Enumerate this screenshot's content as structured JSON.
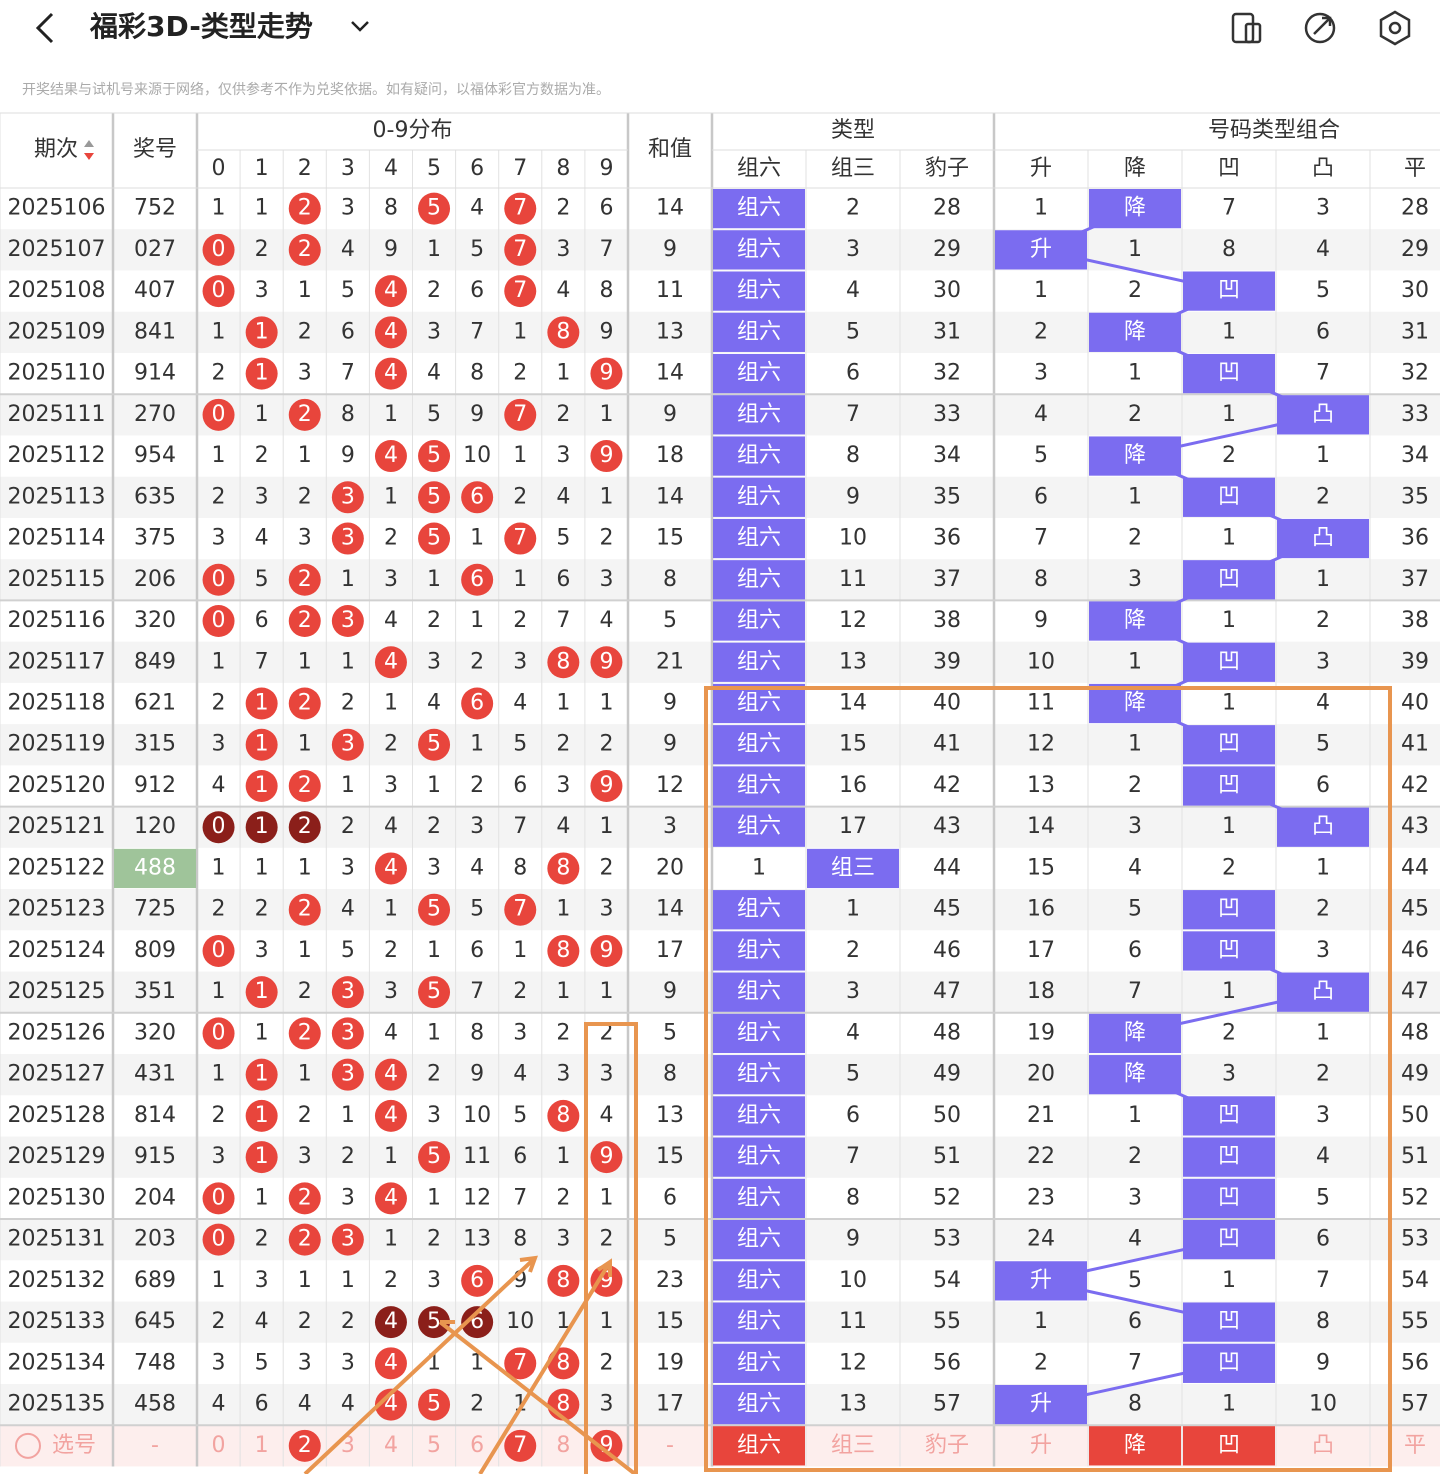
{
  "header": {
    "title": "福彩3D-类型走势",
    "notice": "开奖结果与试机号来源于网络，仅供参考不作为兑奖依据。如有疑问，以福体彩官方数据为准。"
  },
  "table": {
    "headers": {
      "issue": "期次",
      "number": "奖号",
      "distribution": "0-9分布",
      "digits": [
        "0",
        "1",
        "2",
        "3",
        "4",
        "5",
        "6",
        "7",
        "8",
        "9"
      ],
      "sum": "和值",
      "type": "类型",
      "types": [
        "组六",
        "组三",
        "豹子"
      ],
      "combo": "号码类型组合",
      "shapes": [
        "升",
        "降",
        "凹",
        "凸",
        "平"
      ]
    },
    "highlight_color": "#7b6cf0",
    "ball_color": "#e8453c",
    "rows": [
      {
        "issue": "2025106",
        "number": "752",
        "digits": [
          1,
          1,
          2,
          3,
          8,
          5,
          4,
          7,
          2,
          6
        ],
        "sum": 14,
        "types": [
          "组六",
          2,
          28
        ],
        "shapes": [
          1,
          "降",
          7,
          3,
          28
        ]
      },
      {
        "issue": "2025107",
        "number": "027",
        "digits": [
          0,
          2,
          2,
          4,
          9,
          1,
          5,
          7,
          3,
          7
        ],
        "sum": 9,
        "types": [
          "组六",
          3,
          29
        ],
        "shapes": [
          "升",
          1,
          8,
          4,
          29
        ]
      },
      {
        "issue": "2025108",
        "number": "407",
        "digits": [
          0,
          3,
          1,
          5,
          4,
          2,
          6,
          7,
          4,
          8
        ],
        "sum": 11,
        "types": [
          "组六",
          4,
          30
        ],
        "shapes": [
          1,
          2,
          "凹",
          5,
          30
        ]
      },
      {
        "issue": "2025109",
        "number": "841",
        "digits": [
          1,
          1,
          2,
          6,
          4,
          3,
          7,
          1,
          8,
          9
        ],
        "sum": 13,
        "types": [
          "组六",
          5,
          31
        ],
        "shapes": [
          2,
          "降",
          1,
          6,
          31
        ]
      },
      {
        "issue": "2025110",
        "number": "914",
        "digits": [
          2,
          1,
          3,
          7,
          4,
          4,
          8,
          2,
          1,
          9
        ],
        "sum": 14,
        "types": [
          "组六",
          6,
          32
        ],
        "shapes": [
          3,
          1,
          "凹",
          7,
          32
        ]
      },
      {
        "issue": "2025111",
        "number": "270",
        "digits": [
          0,
          1,
          2,
          8,
          1,
          5,
          9,
          7,
          2,
          1
        ],
        "sum": 9,
        "types": [
          "组六",
          7,
          33
        ],
        "shapes": [
          4,
          2,
          1,
          "凸",
          33
        ]
      },
      {
        "issue": "2025112",
        "number": "954",
        "digits": [
          1,
          2,
          1,
          9,
          4,
          5,
          10,
          1,
          3,
          9
        ],
        "sum": 18,
        "types": [
          "组六",
          8,
          34
        ],
        "shapes": [
          5,
          "降",
          2,
          1,
          34
        ]
      },
      {
        "issue": "2025113",
        "number": "635",
        "digits": [
          2,
          3,
          2,
          3,
          1,
          5,
          6,
          2,
          4,
          1
        ],
        "sum": 14,
        "types": [
          "组六",
          9,
          35
        ],
        "shapes": [
          6,
          1,
          "凹",
          2,
          35
        ]
      },
      {
        "issue": "2025114",
        "number": "375",
        "digits": [
          3,
          4,
          3,
          3,
          2,
          5,
          1,
          7,
          5,
          2
        ],
        "sum": 15,
        "types": [
          "组六",
          10,
          36
        ],
        "shapes": [
          7,
          2,
          1,
          "凸",
          36
        ]
      },
      {
        "issue": "2025115",
        "number": "206",
        "digits": [
          0,
          5,
          2,
          1,
          3,
          1,
          6,
          1,
          6,
          3
        ],
        "sum": 8,
        "types": [
          "组六",
          11,
          37
        ],
        "shapes": [
          8,
          3,
          "凹",
          1,
          37
        ]
      },
      {
        "issue": "2025116",
        "number": "320",
        "digits": [
          0,
          6,
          2,
          3,
          4,
          2,
          1,
          2,
          7,
          4
        ],
        "sum": 5,
        "types": [
          "组六",
          12,
          38
        ],
        "shapes": [
          9,
          "降",
          1,
          2,
          38
        ]
      },
      {
        "issue": "2025117",
        "number": "849",
        "digits": [
          1,
          7,
          1,
          1,
          4,
          3,
          2,
          3,
          8,
          9
        ],
        "sum": 21,
        "types": [
          "组六",
          13,
          39
        ],
        "shapes": [
          10,
          1,
          "凹",
          3,
          39
        ]
      },
      {
        "issue": "2025118",
        "number": "621",
        "digits": [
          2,
          1,
          2,
          2,
          1,
          4,
          6,
          4,
          1,
          1
        ],
        "sum": 9,
        "types": [
          "组六",
          14,
          40
        ],
        "shapes": [
          11,
          "降",
          1,
          4,
          40
        ]
      },
      {
        "issue": "2025119",
        "number": "315",
        "digits": [
          3,
          1,
          1,
          3,
          2,
          5,
          1,
          5,
          2,
          2
        ],
        "sum": 9,
        "types": [
          "组六",
          15,
          41
        ],
        "shapes": [
          12,
          1,
          "凹",
          5,
          41
        ]
      },
      {
        "issue": "2025120",
        "number": "912",
        "digits": [
          4,
          1,
          2,
          1,
          3,
          1,
          2,
          6,
          3,
          9
        ],
        "sum": 12,
        "types": [
          "组六",
          16,
          42
        ],
        "shapes": [
          13,
          2,
          "凹",
          6,
          42
        ]
      },
      {
        "issue": "2025121",
        "number": "120",
        "digits": [
          0,
          1,
          2,
          2,
          4,
          2,
          3,
          7,
          4,
          1
        ],
        "sum": 3,
        "types": [
          "组六",
          17,
          43
        ],
        "shapes": [
          14,
          3,
          1,
          "凸",
          43
        ],
        "ball_color": "#8b1f1a"
      },
      {
        "issue": "2025122",
        "number": "488",
        "digits": [
          1,
          1,
          1,
          3,
          4,
          3,
          4,
          8,
          8,
          2
        ],
        "sum": 20,
        "types": [
          1,
          "组三",
          44
        ],
        "shapes": [
          15,
          4,
          2,
          1,
          44
        ],
        "number_bg": "#9fc49a"
      },
      {
        "issue": "2025123",
        "number": "725",
        "digits": [
          2,
          2,
          2,
          4,
          1,
          5,
          5,
          7,
          1,
          3
        ],
        "sum": 14,
        "types": [
          "组六",
          1,
          45
        ],
        "shapes": [
          16,
          5,
          "凹",
          2,
          45
        ]
      },
      {
        "issue": "2025124",
        "number": "809",
        "digits": [
          0,
          3,
          1,
          5,
          2,
          1,
          6,
          1,
          8,
          9
        ],
        "sum": 17,
        "types": [
          "组六",
          2,
          46
        ],
        "shapes": [
          17,
          6,
          "凹",
          3,
          46
        ]
      },
      {
        "issue": "2025125",
        "number": "351",
        "digits": [
          1,
          1,
          2,
          3,
          3,
          5,
          7,
          2,
          1,
          1
        ],
        "sum": 9,
        "types": [
          "组六",
          3,
          47
        ],
        "shapes": [
          18,
          7,
          1,
          "凸",
          47
        ]
      },
      {
        "issue": "2025126",
        "number": "320",
        "digits": [
          0,
          1,
          2,
          3,
          4,
          1,
          8,
          3,
          2,
          2
        ],
        "sum": 5,
        "types": [
          "组六",
          4,
          48
        ],
        "shapes": [
          19,
          "降",
          2,
          1,
          48
        ]
      },
      {
        "issue": "2025127",
        "number": "431",
        "digits": [
          1,
          1,
          1,
          3,
          4,
          2,
          9,
          4,
          3,
          3
        ],
        "sum": 8,
        "types": [
          "组六",
          5,
          49
        ],
        "shapes": [
          20,
          "降",
          3,
          2,
          49
        ]
      },
      {
        "issue": "2025128",
        "number": "814",
        "digits": [
          2,
          1,
          2,
          1,
          4,
          3,
          10,
          5,
          8,
          4
        ],
        "sum": 13,
        "types": [
          "组六",
          6,
          50
        ],
        "shapes": [
          21,
          1,
          "凹",
          3,
          50
        ]
      },
      {
        "issue": "2025129",
        "number": "915",
        "digits": [
          3,
          1,
          3,
          2,
          1,
          5,
          11,
          6,
          1,
          9
        ],
        "sum": 15,
        "types": [
          "组六",
          7,
          51
        ],
        "shapes": [
          22,
          2,
          "凹",
          4,
          51
        ]
      },
      {
        "issue": "2025130",
        "number": "204",
        "digits": [
          0,
          1,
          2,
          3,
          4,
          1,
          12,
          7,
          2,
          1
        ],
        "sum": 6,
        "types": [
          "组六",
          8,
          52
        ],
        "shapes": [
          23,
          3,
          "凹",
          5,
          52
        ]
      },
      {
        "issue": "2025131",
        "number": "203",
        "digits": [
          0,
          2,
          2,
          3,
          1,
          2,
          13,
          8,
          3,
          2
        ],
        "sum": 5,
        "types": [
          "组六",
          9,
          53
        ],
        "shapes": [
          24,
          4,
          "凹",
          6,
          53
        ]
      },
      {
        "issue": "2025132",
        "number": "689",
        "digits": [
          1,
          3,
          1,
          1,
          2,
          3,
          6,
          9,
          8,
          9
        ],
        "sum": 23,
        "types": [
          "组六",
          10,
          54
        ],
        "shapes": [
          "升",
          5,
          1,
          7,
          54
        ]
      },
      {
        "issue": "2025133",
        "number": "645",
        "digits": [
          2,
          4,
          2,
          2,
          4,
          5,
          6,
          10,
          1,
          1
        ],
        "sum": 15,
        "types": [
          "组六",
          11,
          55
        ],
        "shapes": [
          1,
          6,
          "凹",
          8,
          55
        ],
        "ball_color": "#8b1f1a"
      },
      {
        "issue": "2025134",
        "number": "748",
        "digits": [
          3,
          5,
          3,
          3,
          4,
          1,
          1,
          7,
          8,
          2
        ],
        "sum": 19,
        "types": [
          "组六",
          12,
          56
        ],
        "shapes": [
          2,
          7,
          "凹",
          9,
          56
        ]
      },
      {
        "issue": "2025135",
        "number": "458",
        "digits": [
          4,
          6,
          4,
          4,
          4,
          5,
          2,
          1,
          8,
          3
        ],
        "sum": 17,
        "types": [
          "组六",
          13,
          57
        ],
        "shapes": [
          "升",
          8,
          1,
          10,
          57
        ]
      }
    ],
    "select_row": {
      "label": "选号",
      "number": "-",
      "digits": [
        "0",
        "1",
        "2",
        "3",
        "4",
        "5",
        "6",
        "7",
        "8",
        "9"
      ],
      "digit_picked": [
        false,
        false,
        true,
        false,
        false,
        false,
        false,
        true,
        false,
        true
      ],
      "sum": "-",
      "types": [
        "组六",
        "组三",
        "豹子"
      ],
      "types_picked": [
        true,
        false,
        false
      ],
      "shapes": [
        "升",
        "降",
        "凹",
        "凸",
        "平"
      ],
      "shapes_picked": [
        false,
        true,
        true,
        false,
        false
      ]
    }
  }
}
